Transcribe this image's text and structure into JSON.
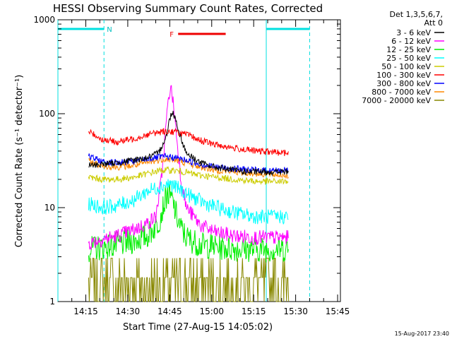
{
  "chart_data": {
    "type": "line",
    "title": "HESSI Observing Summary Count Rates, Corrected",
    "xlabel": "Start Time (27-Aug-15 14:05:02)",
    "ylabel": "Corrected Count Rate (s⁻¹ detector⁻¹)",
    "y_scale": "log",
    "ylim": [
      1,
      1000
    ],
    "y_ticks": [
      "1",
      "10",
      "100",
      "1000"
    ],
    "xlim": [
      "14:05:02",
      "15:46:00"
    ],
    "x_ticks": [
      "14:15",
      "14:30",
      "14:45",
      "15:00",
      "15:15",
      "15:30",
      "15:45"
    ],
    "legend_header": [
      "Det 1,3,5,6,7,",
      "Att 0"
    ],
    "legend_position": "right",
    "footer_timestamp": "15-Aug-2017 23:40",
    "data_start": "14:16:00",
    "data_end": "15:27:30",
    "night_bars": [
      {
        "label": "N",
        "start": "14:05:02",
        "end": "14:21:30"
      },
      {
        "label": "",
        "start": "15:19:30",
        "end": "15:35:00"
      }
    ],
    "flare_bar": {
      "label": "F",
      "start": "14:48:00",
      "end": "15:05:00"
    },
    "series": [
      {
        "name": "3 - 6 keV",
        "color": "#000000",
        "values": [
          [
            0,
            28
          ],
          [
            5,
            29
          ],
          [
            10,
            30
          ],
          [
            16,
            32
          ],
          [
            21,
            34
          ],
          [
            25,
            38
          ],
          [
            28,
            60
          ],
          [
            29,
            90
          ],
          [
            30,
            105
          ],
          [
            31,
            90
          ],
          [
            33,
            55
          ],
          [
            35,
            38
          ],
          [
            40,
            30
          ],
          [
            45,
            27
          ],
          [
            52,
            25
          ],
          [
            57,
            24
          ],
          [
            60,
            24
          ],
          [
            65,
            24
          ],
          [
            71.5,
            24
          ]
        ]
      },
      {
        "name": "6 - 12 keV",
        "color": "#ff00ff",
        "values": [
          [
            0,
            4.2
          ],
          [
            5,
            4.6
          ],
          [
            10,
            5.0
          ],
          [
            16,
            5.8
          ],
          [
            21,
            6.8
          ],
          [
            24,
            8
          ],
          [
            26,
            20
          ],
          [
            28,
            100
          ],
          [
            29.2,
            195
          ],
          [
            30,
            150
          ],
          [
            31,
            80
          ],
          [
            32,
            40
          ],
          [
            33,
            20
          ],
          [
            35,
            10
          ],
          [
            40,
            6.5
          ],
          [
            45,
            5.5
          ],
          [
            52,
            5.0
          ],
          [
            60,
            4.8
          ],
          [
            71.5,
            4.8
          ]
        ]
      },
      {
        "name": "12 - 25 keV",
        "color": "#00ee00",
        "values": [
          [
            0,
            3.6
          ],
          [
            5,
            3.8
          ],
          [
            10,
            4.0
          ],
          [
            16,
            4.4
          ],
          [
            21,
            5.0
          ],
          [
            25,
            7
          ],
          [
            28,
            14
          ],
          [
            30,
            12
          ],
          [
            31,
            9
          ],
          [
            33,
            6
          ],
          [
            35,
            4.8
          ],
          [
            40,
            4.0
          ],
          [
            50,
            3.7
          ],
          [
            60,
            3.6
          ],
          [
            71.5,
            3.6
          ]
        ]
      },
      {
        "name": "25 - 50 keV",
        "color": "#00ffff",
        "values": [
          [
            0,
            11
          ],
          [
            5,
            10
          ],
          [
            10,
            10.5
          ],
          [
            16,
            12
          ],
          [
            21,
            15
          ],
          [
            26,
            17
          ],
          [
            29,
            18
          ],
          [
            32,
            16
          ],
          [
            37,
            13
          ],
          [
            42,
            11
          ],
          [
            48,
            9.5
          ],
          [
            55,
            8.5
          ],
          [
            60,
            8
          ],
          [
            65,
            8
          ],
          [
            71.5,
            8
          ]
        ]
      },
      {
        "name": "50 - 100 keV",
        "color": "#cccc00",
        "values": [
          [
            0,
            21
          ],
          [
            5,
            20
          ],
          [
            10,
            20
          ],
          [
            16,
            21
          ],
          [
            21,
            23
          ],
          [
            26,
            25
          ],
          [
            30,
            25
          ],
          [
            34,
            24
          ],
          [
            40,
            22
          ],
          [
            46,
            21
          ],
          [
            52,
            20
          ],
          [
            60,
            19
          ],
          [
            71.5,
            19
          ]
        ]
      },
      {
        "name": "100 - 300 keV",
        "color": "#ff0000",
        "values": [
          [
            0,
            65
          ],
          [
            5,
            53
          ],
          [
            10,
            50
          ],
          [
            16,
            54
          ],
          [
            21,
            60
          ],
          [
            27,
            65
          ],
          [
            31,
            64
          ],
          [
            35,
            60
          ],
          [
            40,
            52
          ],
          [
            45,
            47
          ],
          [
            52,
            43
          ],
          [
            60,
            40
          ],
          [
            71.5,
            38
          ]
        ]
      },
      {
        "name": "300 - 800 keV",
        "color": "#0000ff",
        "values": [
          [
            0,
            35
          ],
          [
            5,
            31
          ],
          [
            10,
            30
          ],
          [
            16,
            31
          ],
          [
            21,
            33
          ],
          [
            27,
            35
          ],
          [
            31,
            34
          ],
          [
            35,
            32
          ],
          [
            40,
            29
          ],
          [
            46,
            27
          ],
          [
            52,
            26
          ],
          [
            60,
            25
          ],
          [
            71.5,
            25
          ]
        ]
      },
      {
        "name": "800 - 7000 keV",
        "color": "#ff8800",
        "values": [
          [
            0,
            31
          ],
          [
            5,
            28
          ],
          [
            10,
            27
          ],
          [
            16,
            28
          ],
          [
            21,
            30
          ],
          [
            27,
            33
          ],
          [
            31,
            32
          ],
          [
            35,
            30
          ],
          [
            40,
            27
          ],
          [
            46,
            25
          ],
          [
            52,
            24
          ],
          [
            60,
            23
          ],
          [
            71.5,
            22
          ]
        ]
      },
      {
        "name": "7000 - 20000 keV",
        "color": "#888800",
        "values": [
          [
            0,
            1.8
          ],
          [
            10,
            1.8
          ],
          [
            20,
            1.8
          ],
          [
            30,
            1.8
          ],
          [
            40,
            1.8
          ],
          [
            50,
            1.8
          ],
          [
            60,
            1.8
          ],
          [
            71.5,
            1.8
          ]
        ]
      }
    ]
  }
}
